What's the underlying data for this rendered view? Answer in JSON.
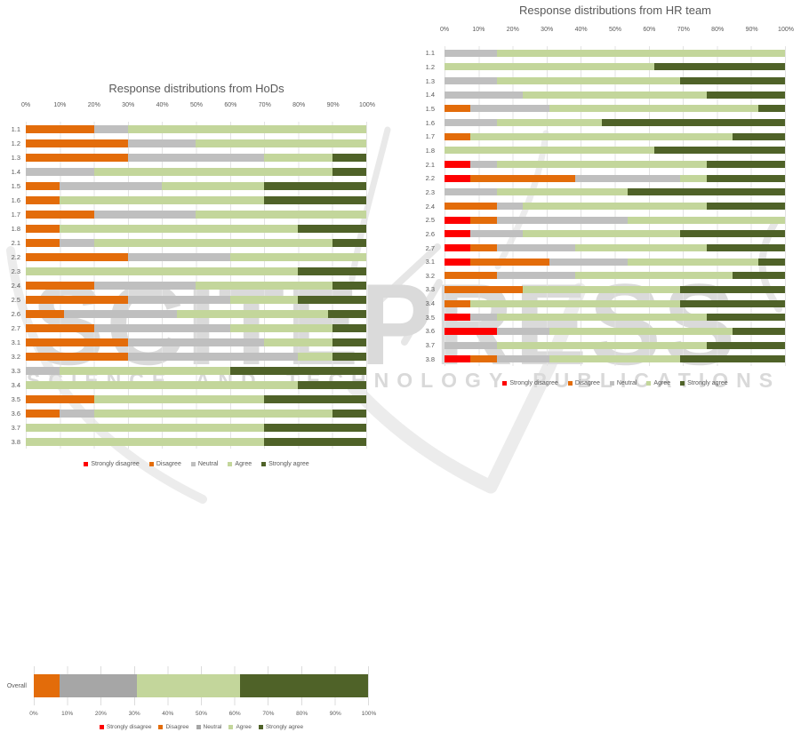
{
  "page": {
    "background": "#ffffff"
  },
  "watermark": {
    "big_text": "SCITEPRESS",
    "sub_text": "SCIENCE AND TECHNOLOGY PUBLICATIONS",
    "text_color": "#dadada",
    "swoosh_color": "#ececec"
  },
  "colors": {
    "strongly_disagree": "#fe0000",
    "disagree": "#e36c0a",
    "neutral": "#bfbfbf",
    "agree": "#c3d69b",
    "strongly_agree": "#4f6228"
  },
  "axis_ticks": [
    "0%",
    "10%",
    "20%",
    "30%",
    "40%",
    "50%",
    "60%",
    "70%",
    "80%",
    "90%",
    "100%"
  ],
  "legend": {
    "items": [
      "Strongly disagree",
      "Disagree",
      "Neutral",
      "Agree",
      "Strongly agree"
    ]
  },
  "chart_data": [
    {
      "type": "bar",
      "subtype": "horizontal-stacked-100",
      "title": "Response distributions from HoDs",
      "axis_position": "top",
      "xlim": [
        0,
        100
      ],
      "grid": true,
      "legend_position": "bottom",
      "categories": [
        "1.1",
        "1.2",
        "1.3",
        "1.4",
        "1.5",
        "1.6",
        "1.7",
        "1.8",
        "2.1",
        "2.2",
        "2.3",
        "2.4",
        "2.5",
        "2.6",
        "2.7",
        "3.1",
        "3.2",
        "3.3",
        "3.4",
        "3.5",
        "3.6",
        "3.7",
        "3.8"
      ],
      "series": [
        {
          "name": "Strongly disagree",
          "key": "strongly_disagree",
          "values": [
            0,
            0,
            0,
            0,
            0,
            0,
            0,
            0,
            0,
            0,
            0,
            0,
            0,
            0,
            0,
            0,
            0,
            0,
            0,
            0,
            0,
            0,
            0
          ]
        },
        {
          "name": "Disagree",
          "key": "disagree",
          "values": [
            20,
            30,
            30,
            0,
            10,
            10,
            20,
            10,
            10,
            30,
            0,
            20,
            30,
            11.1,
            20,
            30,
            30,
            0,
            0,
            20,
            10,
            0,
            0
          ]
        },
        {
          "name": "Neutral",
          "key": "neutral",
          "values": [
            10,
            20,
            40,
            20,
            30,
            0,
            30,
            0,
            10,
            30,
            0,
            30,
            30,
            33.3,
            40,
            40,
            50,
            10,
            0,
            0,
            10,
            0,
            0
          ]
        },
        {
          "name": "Agree",
          "key": "agree",
          "values": [
            70,
            50,
            20,
            70,
            30,
            60,
            50,
            70,
            70,
            40,
            80,
            40,
            20,
            44.5,
            30,
            20,
            10,
            50,
            80,
            50,
            70,
            70,
            70
          ]
        },
        {
          "name": "Strongly agree",
          "key": "strongly_agree",
          "values": [
            0,
            0,
            10,
            10,
            30,
            30,
            0,
            20,
            10,
            0,
            20,
            10,
            20,
            11.1,
            10,
            10,
            10,
            40,
            20,
            30,
            10,
            30,
            30
          ]
        }
      ]
    },
    {
      "type": "bar",
      "subtype": "horizontal-stacked-100",
      "title": "Response distributions from HR team",
      "axis_position": "top",
      "xlim": [
        0,
        100
      ],
      "grid": true,
      "legend_position": "bottom",
      "categories": [
        "1.1",
        "1.2",
        "1.3",
        "1.4",
        "1.5",
        "1.6",
        "1.7",
        "1.8",
        "2.1",
        "2.2",
        "2.3",
        "2.4",
        "2.5",
        "2.6",
        "2.7",
        "3.1",
        "3.2",
        "3.3",
        "3.4",
        "3.5",
        "3.6",
        "3.7",
        "3.8"
      ],
      "series": [
        {
          "name": "Strongly disagree",
          "key": "strongly_disagree",
          "values": [
            0,
            0,
            0,
            0,
            0,
            0,
            0,
            0,
            7.7,
            7.7,
            0,
            0,
            7.7,
            7.7,
            7.7,
            7.7,
            0,
            0,
            0,
            7.7,
            15.4,
            0,
            7.7
          ]
        },
        {
          "name": "Disagree",
          "key": "disagree",
          "values": [
            0,
            0,
            0,
            0,
            7.7,
            0,
            7.7,
            0,
            0,
            30.8,
            0,
            15.4,
            7.7,
            0,
            7.7,
            23.1,
            15.4,
            23.1,
            7.7,
            0,
            0,
            0,
            7.7
          ]
        },
        {
          "name": "Neutral",
          "key": "neutral",
          "values": [
            15.4,
            0,
            15.4,
            23.1,
            23.1,
            15.4,
            0,
            0,
            7.7,
            30.8,
            15.4,
            7.7,
            38.5,
            15.4,
            23.1,
            23.1,
            23.1,
            0,
            0,
            7.7,
            15.4,
            15.4,
            15.4
          ]
        },
        {
          "name": "Agree",
          "key": "agree",
          "values": [
            84.6,
            61.5,
            53.8,
            53.8,
            61.5,
            30.8,
            76.9,
            61.5,
            61.5,
            7.7,
            38.5,
            53.8,
            46.1,
            46.1,
            38.4,
            38.4,
            46.1,
            46.1,
            61.5,
            61.5,
            53.8,
            61.5,
            38.4
          ]
        },
        {
          "name": "Strongly agree",
          "key": "strongly_agree",
          "values": [
            0,
            38.5,
            30.8,
            23.1,
            7.7,
            53.8,
            15.4,
            38.5,
            23.1,
            23,
            46.1,
            23.1,
            0,
            30.8,
            23.1,
            7.7,
            15.4,
            30.8,
            30.8,
            23.1,
            15.4,
            23.1,
            30.8
          ]
        }
      ]
    },
    {
      "type": "bar",
      "subtype": "horizontal-stacked-100",
      "title": "",
      "axis_position": "bottom",
      "xlim": [
        0,
        100
      ],
      "grid": true,
      "legend_position": "bottom",
      "categories": [
        "Overall"
      ],
      "color_overrides": {
        "neutral": "#a6a6a6"
      },
      "series": [
        {
          "name": "Strongly disagree",
          "key": "strongly_disagree",
          "values": [
            0
          ]
        },
        {
          "name": "Disagree",
          "key": "disagree",
          "values": [
            7.7
          ]
        },
        {
          "name": "Neutral",
          "key": "neutral",
          "values": [
            23.1
          ]
        },
        {
          "name": "Agree",
          "key": "agree",
          "values": [
            30.8
          ]
        },
        {
          "name": "Strongly agree",
          "key": "strongly_agree",
          "values": [
            38.4
          ]
        }
      ]
    }
  ]
}
